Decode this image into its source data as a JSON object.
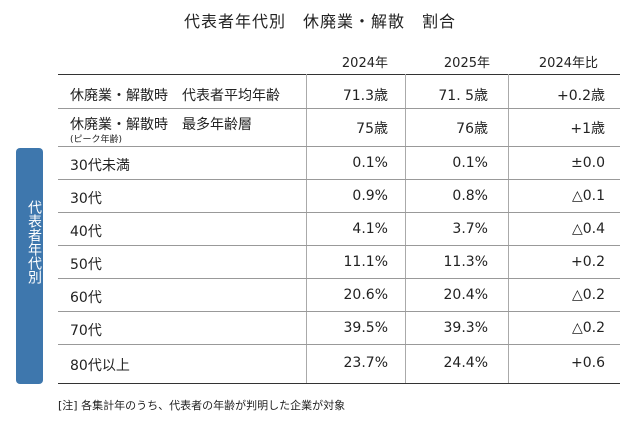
{
  "title": "代表者年代別　休廃業・解散　割合",
  "columns": [
    "2024年",
    "2025年",
    "2024年比"
  ],
  "summary_rows": [
    {
      "label": "休廃業・解散時　代表者平均年齢",
      "sub": "",
      "values": [
        "71.3歳",
        "71. 5歳",
        "+0.2歳"
      ]
    },
    {
      "label": "休廃業・解散時　最多年齢層",
      "sub": "(ピーク年齢)",
      "values": [
        "75歳",
        "76歳",
        "+1歳"
      ]
    }
  ],
  "side_label": "代表者年代別",
  "age_rows": [
    {
      "label": "30代未満",
      "values": [
        "0.1%",
        "0.1%",
        "±0.0"
      ]
    },
    {
      "label": "30代",
      "values": [
        "0.9%",
        "0.8%",
        "△0.1"
      ]
    },
    {
      "label": "40代",
      "values": [
        "4.1%",
        "3.7%",
        "△0.4"
      ]
    },
    {
      "label": "50代",
      "values": [
        "11.1%",
        "11.3%",
        "+0.2"
      ]
    },
    {
      "label": "60代",
      "values": [
        "20.6%",
        "20.4%",
        "△0.2"
      ]
    },
    {
      "label": "70代",
      "values": [
        "39.5%",
        "39.3%",
        "△0.2"
      ]
    },
    {
      "label": "80代以上",
      "values": [
        "23.7%",
        "24.4%",
        "+0.6"
      ]
    }
  ],
  "note": "[注] 各集計年のうち、代表者の年齢が判明した企業が対象"
}
